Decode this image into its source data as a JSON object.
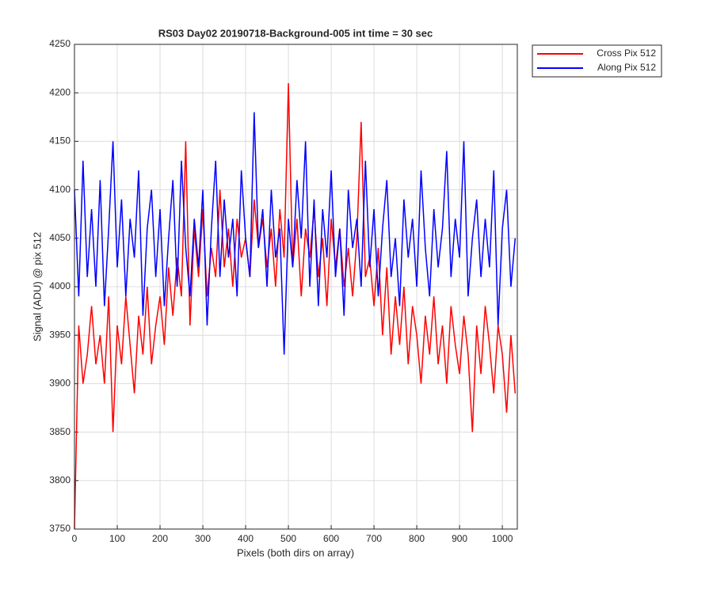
{
  "chart_data": {
    "type": "line",
    "title": "RS03 Day02 20190718-Background-005 int time = 30 sec",
    "xlabel": "Pixels (both dirs on array)",
    "ylabel": "Signal (ADU) @ pix 512",
    "x": [
      0,
      10,
      20,
      30,
      40,
      50,
      60,
      70,
      80,
      90,
      100,
      110,
      120,
      130,
      140,
      150,
      160,
      170,
      180,
      190,
      200,
      210,
      220,
      230,
      240,
      250,
      260,
      270,
      280,
      290,
      300,
      310,
      320,
      330,
      340,
      350,
      360,
      370,
      380,
      390,
      400,
      410,
      420,
      430,
      440,
      450,
      460,
      470,
      480,
      490,
      500,
      510,
      520,
      530,
      540,
      550,
      560,
      570,
      580,
      590,
      600,
      610,
      620,
      630,
      640,
      650,
      660,
      670,
      680,
      690,
      700,
      710,
      720,
      730,
      740,
      750,
      760,
      770,
      780,
      790,
      800,
      810,
      820,
      830,
      840,
      850,
      860,
      870,
      880,
      890,
      900,
      910,
      920,
      930,
      940,
      950,
      960,
      970,
      980,
      990,
      1000,
      1010,
      1020,
      1030
    ],
    "series": [
      {
        "name": "Cross Pix 512",
        "color": "#ff0000",
        "values": [
          3750,
          3960,
          3900,
          3930,
          3980,
          3920,
          3950,
          3900,
          3990,
          3850,
          3960,
          3920,
          3990,
          3940,
          3890,
          3970,
          3930,
          4000,
          3920,
          3960,
          3990,
          3940,
          4020,
          3970,
          4030,
          3990,
          4150,
          3960,
          4060,
          4010,
          4080,
          3990,
          4040,
          4010,
          4100,
          4020,
          4060,
          4000,
          4070,
          4030,
          4050,
          4010,
          4090,
          4040,
          4070,
          4020,
          4060,
          4000,
          4080,
          4030,
          4210,
          4020,
          4070,
          3990,
          4060,
          4030,
          4080,
          4010,
          4050,
          3980,
          4070,
          4020,
          4060,
          4000,
          4040,
          3990,
          4050,
          4170,
          4010,
          4030,
          3980,
          4040,
          3950,
          4020,
          3930,
          3990,
          3940,
          4000,
          3920,
          3980,
          3950,
          3900,
          3970,
          3930,
          3990,
          3920,
          3960,
          3900,
          3980,
          3940,
          3910,
          3970,
          3930,
          3850,
          3960,
          3910,
          3980,
          3940,
          3890,
          3960,
          3930,
          3870,
          3950,
          3890
        ]
      },
      {
        "name": "Along Pix 512",
        "color": "#0000ff",
        "values": [
          4100,
          3990,
          4130,
          4010,
          4080,
          4000,
          4110,
          3980,
          4060,
          4150,
          4020,
          4090,
          3990,
          4070,
          4030,
          4120,
          3970,
          4060,
          4100,
          4010,
          4080,
          3980,
          4050,
          4110,
          4000,
          4130,
          4040,
          3990,
          4070,
          4020,
          4100,
          3960,
          4060,
          4130,
          4010,
          4090,
          4030,
          4070,
          3990,
          4120,
          4050,
          4010,
          4180,
          4040,
          4080,
          4000,
          4100,
          4030,
          4060,
          3930,
          4070,
          4020,
          4110,
          4050,
          4150,
          4000,
          4090,
          3980,
          4080,
          4030,
          4120,
          4010,
          4060,
          3970,
          4100,
          4040,
          4070,
          4000,
          4130,
          4020,
          4080,
          3990,
          4060,
          4110,
          4010,
          4050,
          3980,
          4090,
          4030,
          4070,
          4000,
          4120,
          4040,
          3990,
          4080,
          4020,
          4060,
          4140,
          4010,
          4070,
          4030,
          4150,
          3990,
          4050,
          4090,
          4010,
          4070,
          4020,
          4120,
          3960,
          4060,
          4100,
          4000,
          4050
        ]
      }
    ],
    "xlim": [
      0,
      1035
    ],
    "ylim": [
      3750,
      4250
    ],
    "xticks": [
      0,
      100,
      200,
      300,
      400,
      500,
      600,
      700,
      800,
      900,
      1000
    ],
    "yticks": [
      3750,
      3800,
      3850,
      3900,
      3950,
      4000,
      4050,
      4100,
      4150,
      4200,
      4250
    ],
    "grid": true,
    "legend": "outside-top-right"
  }
}
